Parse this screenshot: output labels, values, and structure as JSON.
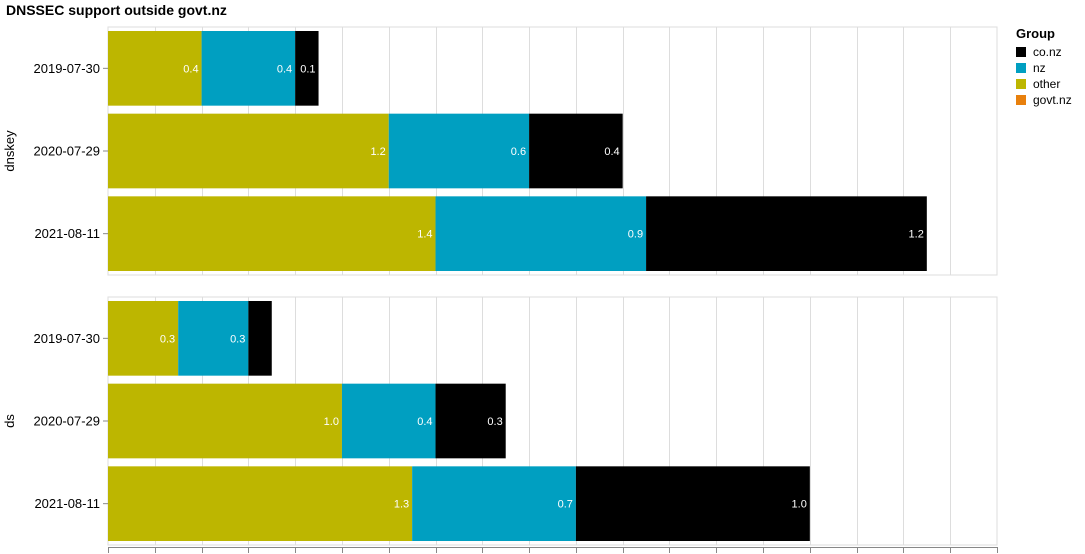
{
  "chart_data": {
    "type": "bar",
    "orientation": "horizontal",
    "stacked": true,
    "title": "DNSSEC support outside govt.nz",
    "legend": {
      "title": "Group",
      "position": "top-right",
      "entries": [
        {
          "name": "co.nz",
          "color": "#000000"
        },
        {
          "name": "nz",
          "color": "#009FC1"
        },
        {
          "name": "other",
          "color": "#BDB600"
        },
        {
          "name": "govt.nz",
          "color": "#E8800D"
        }
      ]
    },
    "grid": true,
    "xlim": [
      0,
      3.8
    ],
    "panels": [
      {
        "facet": "dnskey",
        "categories": [
          "2019-07-30",
          "2020-07-29",
          "2021-08-11"
        ],
        "series": [
          {
            "name": "other",
            "values": [
              0.4,
              1.2,
              1.4
            ],
            "labels": [
              "0.4",
              "1.2",
              "1.4"
            ]
          },
          {
            "name": "nz",
            "values": [
              0.4,
              0.6,
              0.9
            ],
            "labels": [
              "0.4",
              "0.6",
              "0.9"
            ]
          },
          {
            "name": "co.nz",
            "values": [
              0.1,
              0.4,
              1.2
            ],
            "labels": [
              "0.1",
              "0.4",
              "1.2"
            ]
          }
        ]
      },
      {
        "facet": "ds",
        "categories": [
          "2019-07-30",
          "2020-07-29",
          "2021-08-11"
        ],
        "series": [
          {
            "name": "other",
            "values": [
              0.3,
              1.0,
              1.3
            ],
            "labels": [
              "0.3",
              "1.0",
              "1.3"
            ]
          },
          {
            "name": "nz",
            "values": [
              0.3,
              0.4,
              0.7
            ],
            "labels": [
              "0.3",
              "0.4",
              "0.7"
            ]
          },
          {
            "name": "co.nz",
            "values": [
              0.1,
              0.3,
              1.0
            ],
            "labels": [
              "",
              "0.3",
              "1.0"
            ]
          }
        ]
      }
    ]
  }
}
